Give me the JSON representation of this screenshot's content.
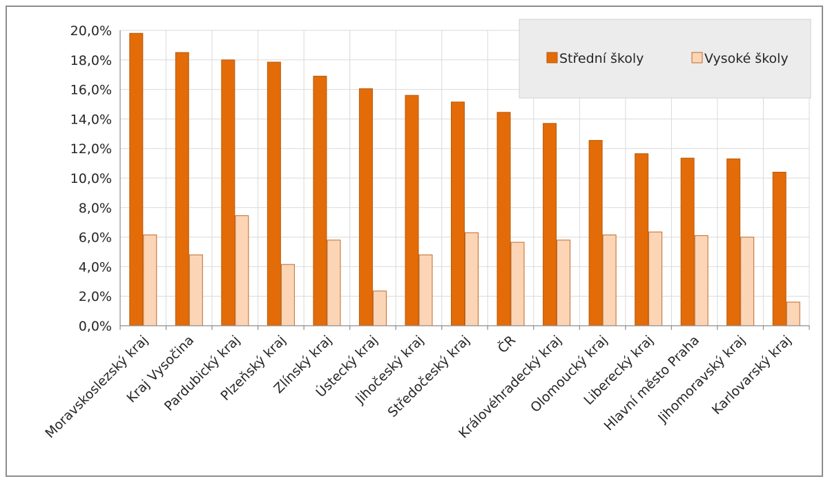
{
  "chart_data": {
    "type": "bar",
    "categories": [
      "Moravskoslezský kraj",
      "Kraj Vysočina",
      "Pardubický kraj",
      "Plzeňský kraj",
      "Zlínský kraj",
      "Ústecký kraj",
      "Jihočeský kraj",
      "Středočeský kraj",
      "ČR",
      "Královéhradecký kraj",
      "Olomoucký kraj",
      "Liberecký kraj",
      "Hlavní město Praha",
      "Jihomoravský kraj",
      "Karlovarský kraj"
    ],
    "series": [
      {
        "name": "Střední školy",
        "color": "#e36c09",
        "stroke": "#b85a0a",
        "values": [
          19.8,
          18.5,
          18.0,
          17.85,
          16.9,
          16.05,
          15.6,
          15.15,
          14.45,
          13.7,
          12.55,
          11.65,
          11.35,
          11.3,
          10.4
        ]
      },
      {
        "name": "Vysoké školy",
        "color": "#fbd5b5",
        "stroke": "#c0692a",
        "values": [
          6.15,
          4.8,
          7.45,
          4.15,
          5.8,
          2.35,
          4.8,
          6.3,
          5.65,
          5.8,
          6.15,
          6.35,
          6.1,
          6.0,
          1.6
        ]
      }
    ],
    "ylim": [
      0,
      20
    ],
    "yticks": [
      "0,0%",
      "2,0%",
      "4,0%",
      "6,0%",
      "8,0%",
      "10,0%",
      "12,0%",
      "14,0%",
      "16,0%",
      "18,0%",
      "20,0%"
    ],
    "grid": "vertical and horizontal",
    "legend_position": "top-right"
  }
}
